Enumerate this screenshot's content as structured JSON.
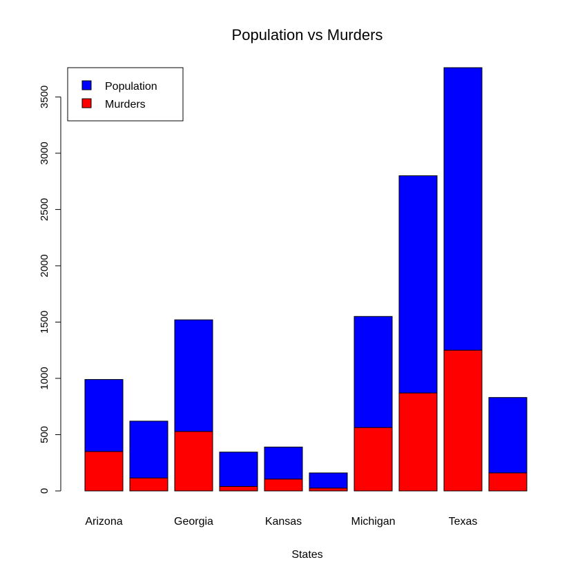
{
  "chart_data": {
    "type": "bar",
    "title": "Population vs Murders",
    "xlabel": "States",
    "ylabel": "",
    "ylim": [
      0,
      3760
    ],
    "yticks": [
      0,
      500,
      1000,
      1500,
      2000,
      2500,
      3000,
      3500
    ],
    "category_labels": [
      "Arizona",
      "",
      "Georgia",
      "",
      "Kansas",
      "",
      "Michigan",
      "",
      "Texas",
      ""
    ],
    "series": [
      {
        "name": "Population",
        "color": "#0000ff",
        "values": [
          990,
          620,
          1520,
          345,
          390,
          160,
          1550,
          2800,
          3760,
          830
        ]
      },
      {
        "name": "Murders",
        "color": "#ff0000",
        "values": [
          350,
          115,
          528,
          40,
          105,
          25,
          563,
          870,
          1250,
          160
        ]
      }
    ],
    "legend_position": "top-left",
    "grid": false
  }
}
